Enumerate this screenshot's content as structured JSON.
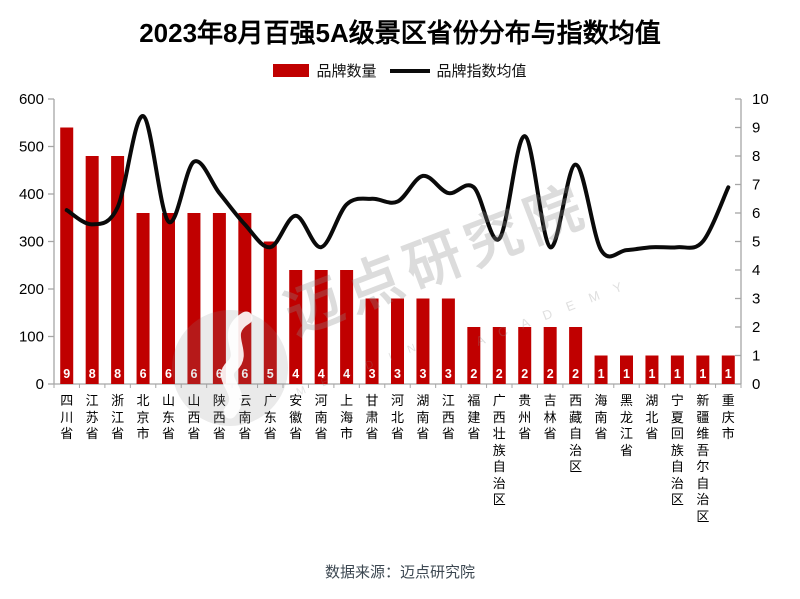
{
  "title": "2023年8月百强5A级景区省份分布与指数均值",
  "legend": {
    "bars": "品牌数量",
    "line": "品牌指数均值"
  },
  "source": "数据来源：迈点研究院",
  "watermark": {
    "main": "迈点研究院",
    "academy": "A C A D E M Y",
    "meadin": "M E A D I N"
  },
  "colors": {
    "bar": "#c00000",
    "line": "#0a0a0a",
    "axis": "#a6a6a6",
    "bar_label": "#ffffff",
    "tick_label": "#000000",
    "source_text": "#3d4852",
    "watermark_gray": "rgba(140,140,140,0.30)"
  },
  "chart_data": {
    "type": "bar+line combo",
    "categories": [
      "四川省",
      "江苏省",
      "浙江省",
      "北京市",
      "山东省",
      "山西省",
      "陕西省",
      "云南省",
      "广东省",
      "安徽省",
      "河南省",
      "上海市",
      "甘肃省",
      "河北省",
      "湖南省",
      "江西省",
      "福建省",
      "广西壮族自治区",
      "贵州省",
      "吉林省",
      "西藏自治区",
      "海南省",
      "黑龙江省",
      "湖北省",
      "宁夏回族自治区",
      "新疆维吾尔自治区",
      "重庆市"
    ],
    "series": [
      {
        "name": "品牌数量",
        "type": "bar",
        "axis": "left",
        "values": [
          9,
          8,
          8,
          6,
          6,
          6,
          6,
          6,
          5,
          4,
          4,
          4,
          3,
          3,
          3,
          3,
          2,
          2,
          2,
          2,
          2,
          1,
          1,
          1,
          1,
          1,
          1
        ],
        "left_axis_units_per_count": 60
      },
      {
        "name": "品牌指数均值",
        "type": "line",
        "axis": "right",
        "values": [
          6.1,
          5.6,
          6.2,
          9.4,
          5.7,
          7.8,
          6.7,
          5.6,
          4.8,
          5.9,
          4.8,
          6.3,
          6.5,
          6.4,
          7.3,
          6.7,
          6.9,
          5.1,
          8.7,
          4.8,
          7.7,
          4.7,
          4.7,
          4.8,
          4.8,
          5.0,
          6.9
        ]
      }
    ],
    "left_axis": {
      "min": 0,
      "max": 600,
      "step": 100,
      "ticks": [
        0,
        100,
        200,
        300,
        400,
        500,
        600
      ]
    },
    "right_axis": {
      "min": 0,
      "max": 10,
      "step": 1,
      "ticks": [
        0,
        1,
        2,
        3,
        4,
        5,
        6,
        7,
        8,
        9,
        10
      ]
    },
    "grid": false,
    "legend_position": "top-center",
    "bar_value_labels_inside_bottom": true
  }
}
